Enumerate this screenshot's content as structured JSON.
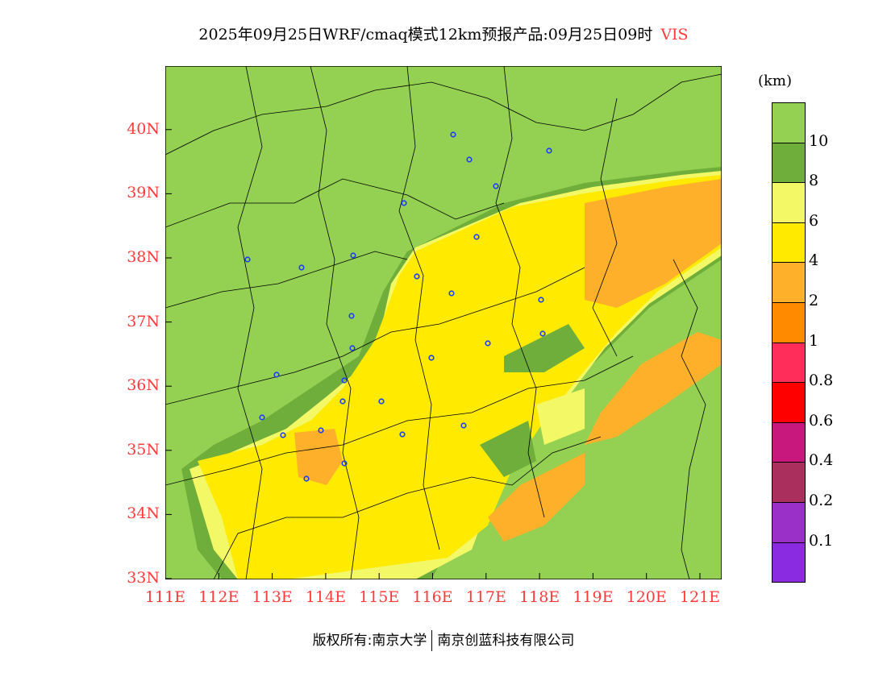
{
  "title": {
    "text": "2025年09月25日WRF/cmaq模式12km预报产品:09月25日09时",
    "variable": "VIS"
  },
  "map": {
    "lat_labels": [
      "40N",
      "39N",
      "38N",
      "37N",
      "36N",
      "35N",
      "34N",
      "33N"
    ],
    "lon_labels": [
      "111E",
      "112E",
      "113E",
      "114E",
      "115E",
      "116E",
      "117E",
      "118E",
      "119E",
      "120E",
      "121E"
    ]
  },
  "legend": {
    "unit": "(km)",
    "colors": [
      "#94d052",
      "#6fae3a",
      "#f3f866",
      "#ffea00",
      "#ffb02a",
      "#ff8a00",
      "#ff2d5a",
      "#ff0000",
      "#c8177d",
      "#ab2f5c",
      "#9a30c8",
      "#8a2be2"
    ],
    "labels": [
      "10",
      "8",
      "6",
      "4",
      "2",
      "1",
      "0.8",
      "0.6",
      "0.4",
      "0.2",
      "0.1"
    ]
  },
  "footer": {
    "left": "版权所有:南京大学",
    "right": "南京创蓝科技有限公司"
  }
}
